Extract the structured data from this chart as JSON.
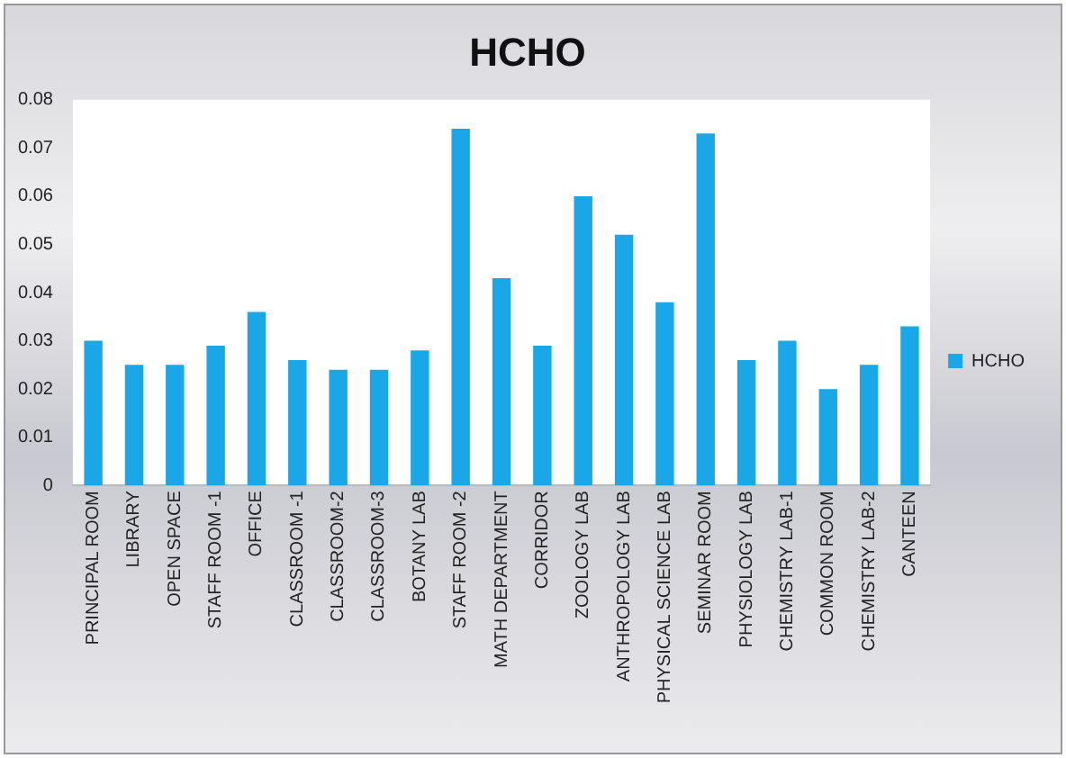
{
  "chart_data": {
    "type": "bar",
    "title": "HCHO",
    "categories": [
      "PRINCIPAL ROOM",
      "LIBRARY",
      "OPEN SPACE",
      "STAFF ROOM -1",
      "OFFICE",
      "CLASSROOM -1",
      "CLASSROOM-2",
      "CLASSROOM-3",
      "BOTANY LAB",
      "STAFF ROOM -2",
      "MATH DEPARTMENT",
      "CORRIDOR",
      "ZOOLOGY LAB",
      "ANTHROPOLOGY LAB",
      "PHYSICAL SCIENCE LAB",
      "SEMINAR ROOM",
      "PHYSIOLOGY LAB",
      "CHEMISTRY LAB-1",
      "COMMON ROOM",
      "CHEMISTRY LAB-2",
      "CANTEEN"
    ],
    "series": [
      {
        "name": "HCHO",
        "color": "#1aa7e8",
        "values": [
          0.03,
          0.025,
          0.025,
          0.029,
          0.036,
          0.026,
          0.024,
          0.024,
          0.028,
          0.074,
          0.043,
          0.029,
          0.06,
          0.052,
          0.038,
          0.073,
          0.026,
          0.03,
          0.02,
          0.025,
          0.033
        ]
      }
    ],
    "ylim": [
      0,
      0.08
    ],
    "yticks": [
      0,
      0.01,
      0.02,
      0.03,
      0.04,
      0.05,
      0.06,
      0.07,
      0.08
    ],
    "grid": false,
    "legend": "right"
  }
}
